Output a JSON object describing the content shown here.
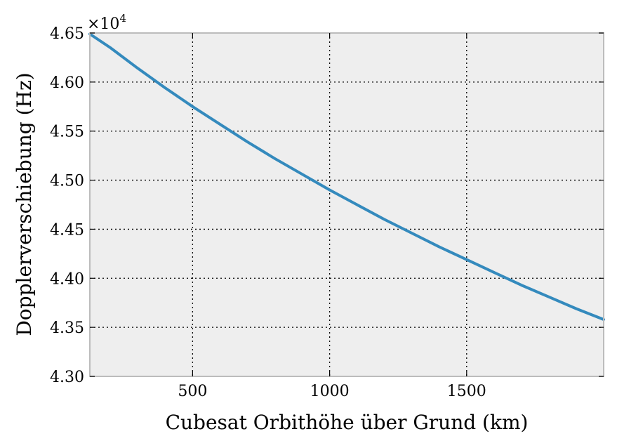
{
  "chart_data": {
    "type": "line",
    "xlabel": "Cubesat Orbithöhe über Grund (km)",
    "ylabel": "Dopplerverschiebung (Hz)",
    "y_multiplier_label": "×10",
    "y_multiplier_exponent": "4",
    "xlim": [
      125,
      2000
    ],
    "ylim": [
      4.3,
      4.65
    ],
    "x_ticks": [
      500,
      1000,
      1500
    ],
    "x_tick_labels": [
      "500",
      "1000",
      "1500"
    ],
    "y_ticks": [
      4.3,
      4.35,
      4.4,
      4.45,
      4.5,
      4.55,
      4.6,
      4.65
    ],
    "y_tick_labels": [
      "4.30",
      "4.35",
      "4.40",
      "4.45",
      "4.50",
      "4.55",
      "4.60",
      "4.65"
    ],
    "grid": true,
    "series": [
      {
        "color": "#348abd",
        "x": [
          125,
          200,
          300,
          400,
          500,
          600,
          700,
          800,
          900,
          1000,
          1100,
          1200,
          1300,
          1400,
          1500,
          1600,
          1700,
          1800,
          1900,
          2000
        ],
        "y": [
          4.649,
          4.635,
          4.614,
          4.594,
          4.575,
          4.557,
          4.539,
          4.522,
          4.506,
          4.49,
          4.475,
          4.46,
          4.446,
          4.432,
          4.419,
          4.406,
          4.393,
          4.381,
          4.369,
          4.358
        ]
      }
    ]
  }
}
